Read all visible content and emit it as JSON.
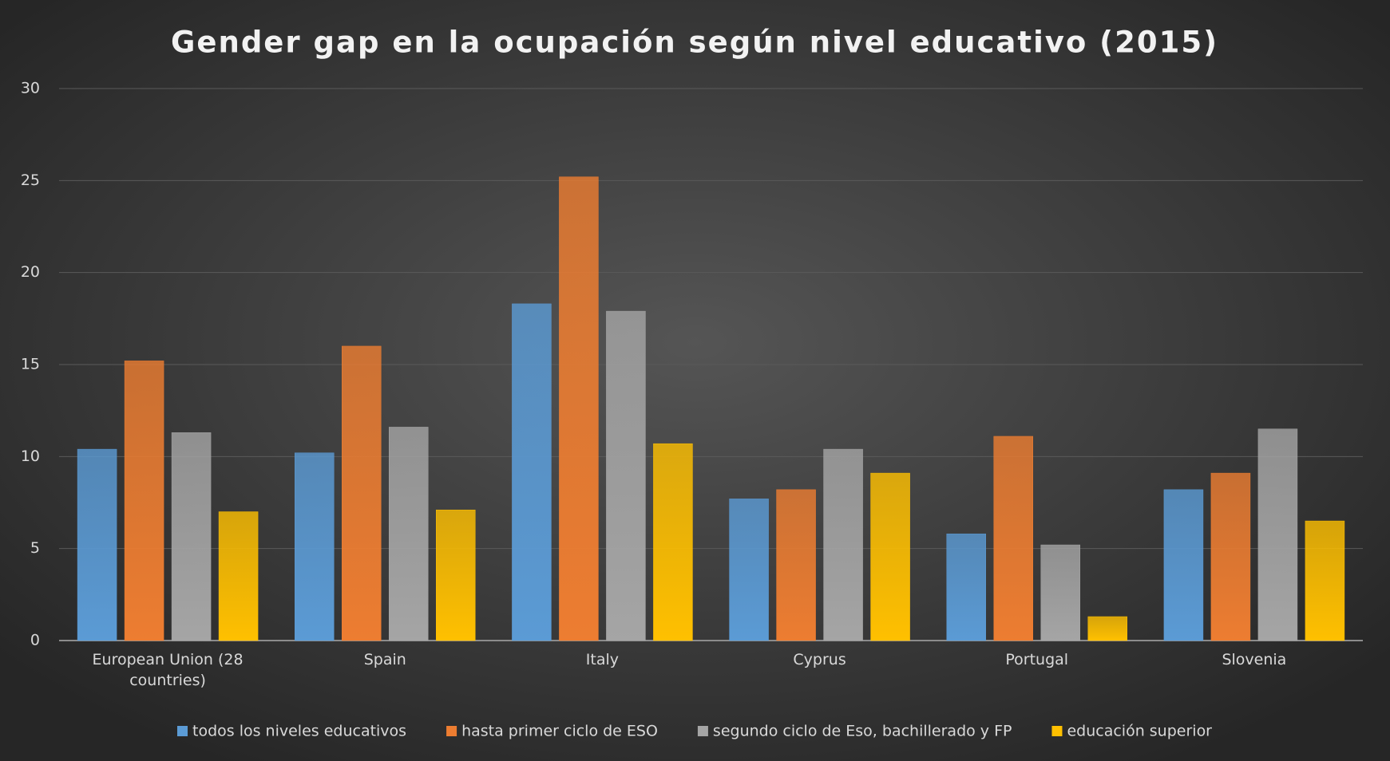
{
  "chart_data": {
    "type": "bar",
    "title": "Gender gap en la ocupación según nivel educativo (2015)",
    "categories": [
      "European Union (28 countries)",
      "Spain",
      "Italy",
      "Cyprus",
      "Portugal",
      "Slovenia"
    ],
    "series": [
      {
        "name": "todos los niveles educativos",
        "color": "#5b9bd5",
        "values": [
          10.4,
          10.2,
          18.3,
          7.7,
          5.8,
          8.2
        ]
      },
      {
        "name": "hasta primer ciclo de ESO",
        "color": "#ed7d31",
        "values": [
          15.2,
          16.0,
          25.2,
          8.2,
          11.1,
          9.1
        ]
      },
      {
        "name": "segundo ciclo de Eso, bachillerado y FP",
        "color": "#a5a5a5",
        "values": [
          11.3,
          11.6,
          17.9,
          10.4,
          5.2,
          11.5
        ]
      },
      {
        "name": "educación superior",
        "color": "#ffc000",
        "values": [
          7.0,
          7.1,
          10.7,
          9.1,
          1.3,
          6.5
        ]
      }
    ],
    "ylim": [
      0,
      30
    ],
    "yticks": [
      0,
      5,
      10,
      15,
      20,
      25,
      30
    ],
    "grid": true,
    "legend": "bottom"
  }
}
